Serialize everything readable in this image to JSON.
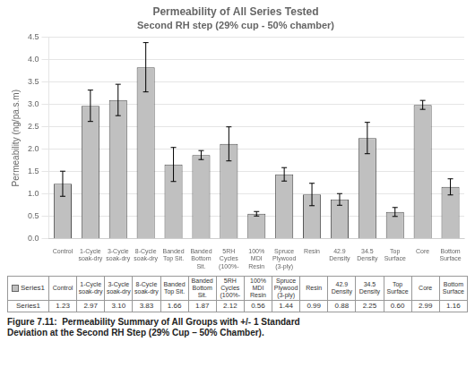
{
  "chart_data": {
    "type": "bar",
    "title": "Permeability of All Series Tested",
    "subtitle": "Second RH step (29% cup - 50% chamber)",
    "ylabel": "Permeability (ng/pa.s.m)",
    "categories": [
      "Control",
      "1-Cycle\nsoak-dry",
      "3-Cycle\nsoak-dry",
      "8-Cycle\nsoak-dry",
      "Banded\nTop Sit.",
      "Banded\nBottom\nSit.",
      "5RH\nCycles\n(100%-",
      "100%\nMDI\nResin",
      "Spruce\nPlywood\n(3-ply)",
      "Resin",
      "42.9\nDensity",
      "34.5\nDensity",
      "Top\nSurface",
      "Core",
      "Bottom\nSurface"
    ],
    "series": [
      {
        "name": "Series1",
        "color": "#c0c0c0",
        "values": [
          1.23,
          2.97,
          3.1,
          3.83,
          1.66,
          1.87,
          2.12,
          0.56,
          1.44,
          0.99,
          0.88,
          2.25,
          0.6,
          2.99,
          1.16
        ],
        "value_labels": [
          "1.23",
          "2.97",
          "3.10",
          "3.83",
          "1.66",
          "1.87",
          "2.12",
          "0.56",
          "1.44",
          "0.99",
          "0.88",
          "2.25",
          "0.60",
          "2.99",
          "1.16"
        ],
        "errors": [
          0.28,
          0.35,
          0.35,
          0.55,
          0.38,
          0.1,
          0.38,
          0.05,
          0.15,
          0.25,
          0.13,
          0.35,
          0.1,
          0.1,
          0.18
        ]
      }
    ],
    "ylim": [
      0.0,
      4.5
    ],
    "yticks": [
      {
        "value": 0,
        "label": "0.0"
      },
      0.5,
      {
        "value": 1,
        "label": "1.0"
      },
      1.5,
      {
        "value": 2,
        "label": "2.0"
      },
      2.5,
      {
        "value": 3,
        "label": "3.0"
      },
      3.5,
      {
        "value": 4,
        "label": "4.0"
      },
      4.5
    ],
    "grid": true,
    "legend": "bottom",
    "caption": "Figure 7.11:  Permeability Summary of All Groups with +/- 1 Standard\nDeviation at the Second RH Step (29% Cup – 50% Chamber)."
  }
}
